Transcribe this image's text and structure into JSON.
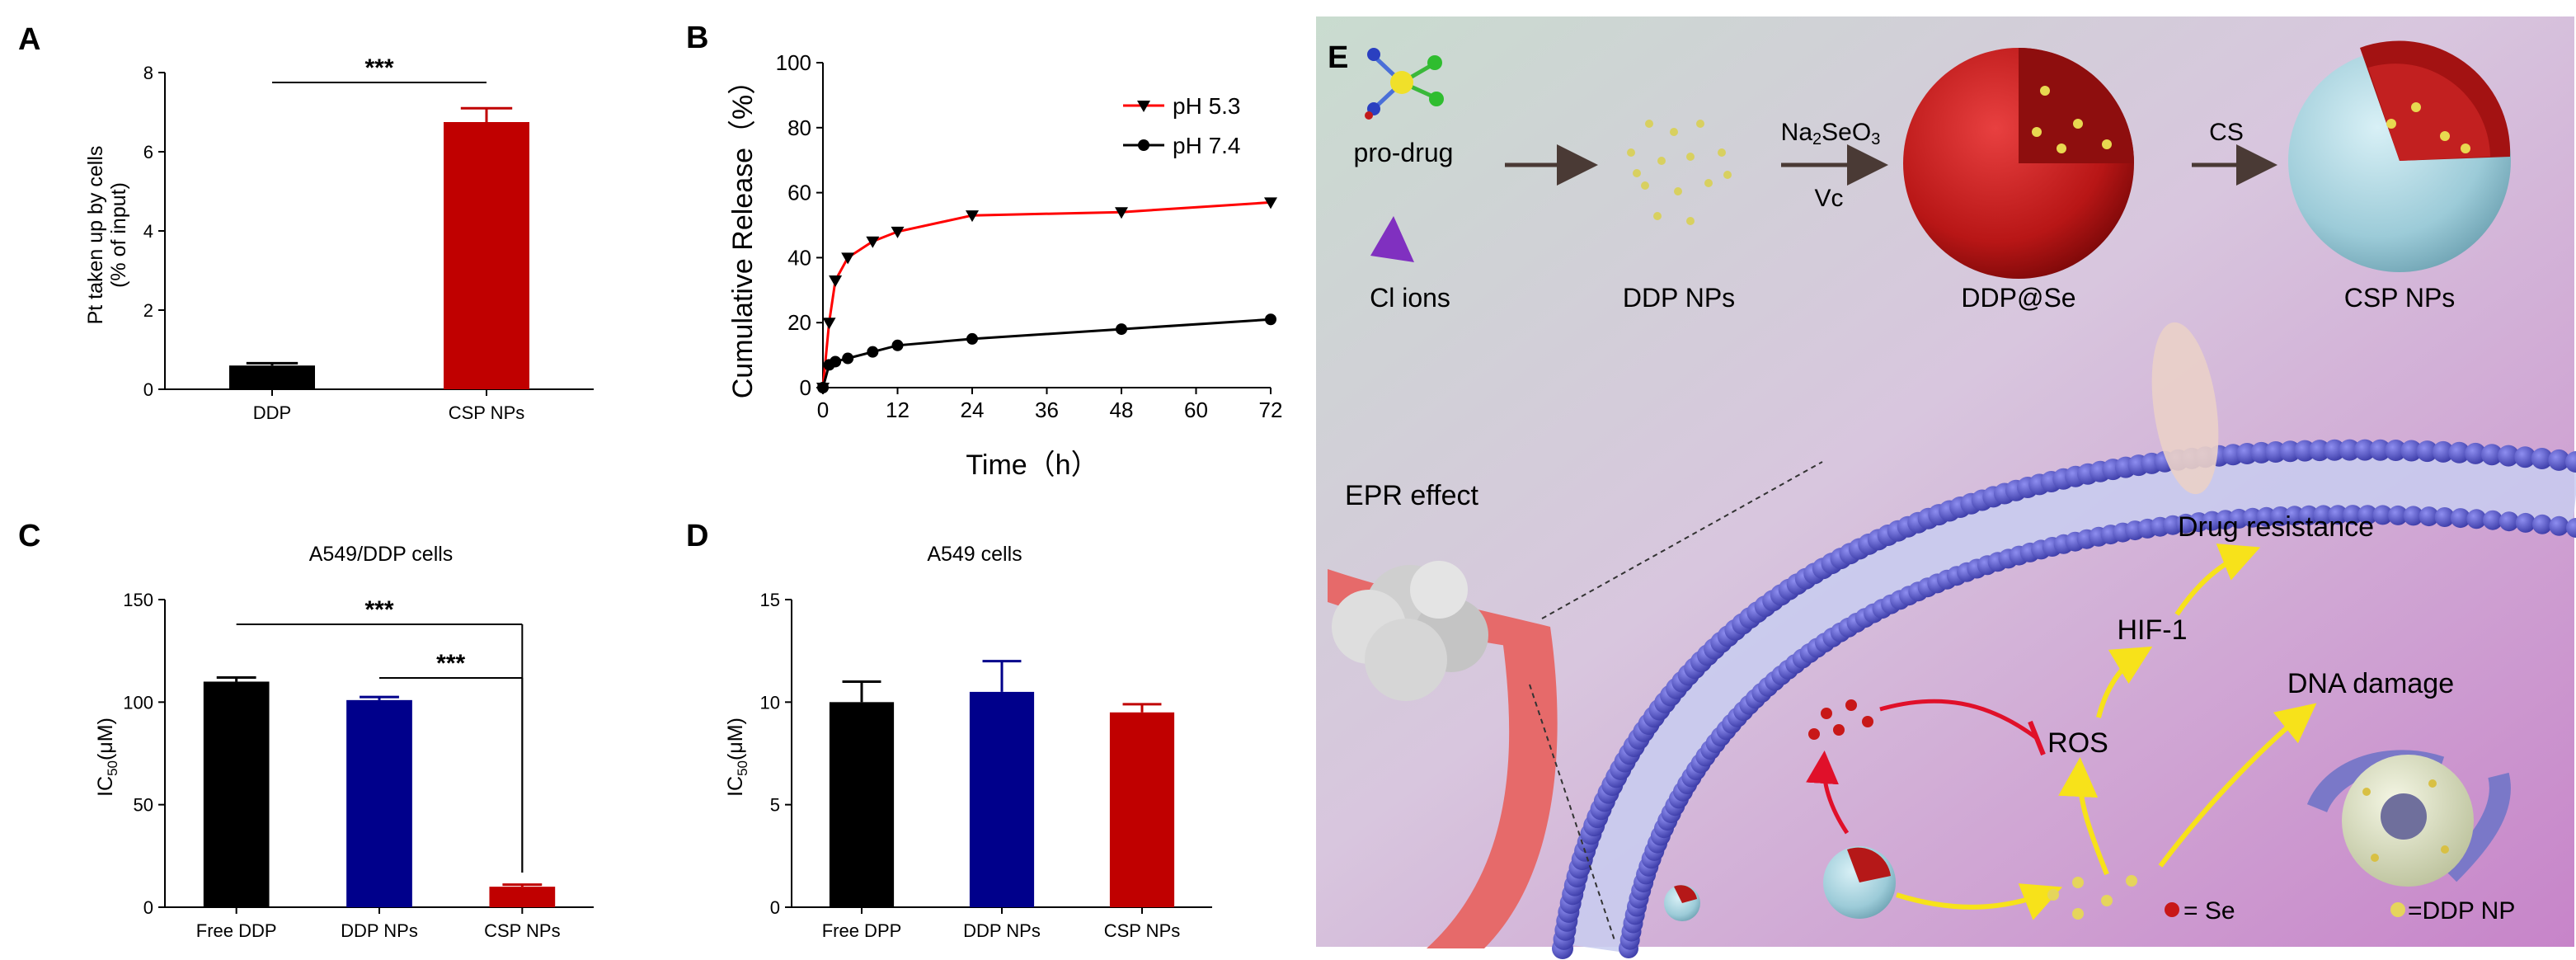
{
  "panels": {
    "A": "A",
    "B": "B",
    "C": "C",
    "D": "D",
    "E": "E"
  },
  "chart_data": [
    {
      "id": "A",
      "type": "bar",
      "title": "",
      "ylabel_line1": "Pt taken up by cells",
      "ylabel_line2": "(% of input)",
      "xlabel": "",
      "categories": [
        "DDP",
        "CSP NPs"
      ],
      "values": [
        0.6,
        6.75
      ],
      "errors": [
        0.06,
        0.35
      ],
      "colors": [
        "#000000",
        "#c00000"
      ],
      "ylim": [
        0,
        8
      ],
      "yticks": [
        0,
        2,
        4,
        6,
        8
      ],
      "significance": [
        {
          "from": 0,
          "to": 1,
          "label": "***"
        }
      ]
    },
    {
      "id": "B",
      "type": "line",
      "title": "",
      "xlabel": "Time（h）",
      "ylabel": "Cumulative Release（%）",
      "xlim": [
        0,
        72
      ],
      "ylim": [
        0,
        100
      ],
      "xticks": [
        0,
        12,
        24,
        36,
        48,
        60,
        72
      ],
      "yticks": [
        0,
        20,
        40,
        60,
        80,
        100
      ],
      "series": [
        {
          "name": "pH 5.3",
          "marker": "triangle-down",
          "color": "#ff0000",
          "x": [
            0,
            1,
            2,
            4,
            8,
            12,
            24,
            48,
            72
          ],
          "y": [
            0,
            20,
            33,
            40,
            45,
            48,
            53,
            54,
            57
          ]
        },
        {
          "name": "pH 7.4",
          "marker": "circle",
          "color": "#000000",
          "x": [
            0,
            1,
            2,
            4,
            8,
            12,
            24,
            48,
            72
          ],
          "y": [
            0,
            7,
            8,
            9,
            11,
            13,
            15,
            18,
            21
          ]
        }
      ]
    },
    {
      "id": "C",
      "type": "bar",
      "title": "A549/DDP cells",
      "ylabel": "IC50(μM)",
      "categories": [
        "Free DDP",
        "DDP NPs",
        "CSP NPs"
      ],
      "values": [
        110,
        101,
        10
      ],
      "errors": [
        2,
        1.5,
        1
      ],
      "colors": [
        "#000000",
        "#00008b",
        "#c00000"
      ],
      "ylim": [
        0,
        150
      ],
      "yticks": [
        0,
        50,
        100,
        150
      ],
      "significance": [
        {
          "from": 0,
          "to": 2,
          "label": "***"
        },
        {
          "from": 1,
          "to": 2,
          "label": "***"
        }
      ]
    },
    {
      "id": "D",
      "type": "bar",
      "title": "A549 cells",
      "ylabel": "IC50(μM)",
      "categories": [
        "Free DPP",
        "DDP NPs",
        "CSP NPs"
      ],
      "values": [
        10,
        10.5,
        9.5
      ],
      "errors": [
        1,
        1.5,
        0.4
      ],
      "colors": [
        "#000000",
        "#00008b",
        "#c00000"
      ],
      "ylim": [
        0,
        15
      ],
      "yticks": [
        0,
        5,
        10,
        15
      ],
      "significance": []
    }
  ],
  "schematic": {
    "label": "E",
    "prodrug": "pro-drug",
    "cl_ions": "Cl ions",
    "ddp_nps": "DDP NPs",
    "reagent1_main": "Na",
    "reagent1_sub1": "2",
    "reagent1_mid": "SeO",
    "reagent1_sub2": "3",
    "reagent2": "Vc",
    "ddp_se": "DDP@Se",
    "cs": "CS",
    "csp_nps": "CSP NPs",
    "epr": "EPR effect",
    "drug_resistance": "Drug resistance",
    "hif": "HIF-1",
    "ros": "ROS",
    "dna_damage": "DNA damage",
    "legend_se": "= Se",
    "legend_ddp": "=DDP NP"
  }
}
